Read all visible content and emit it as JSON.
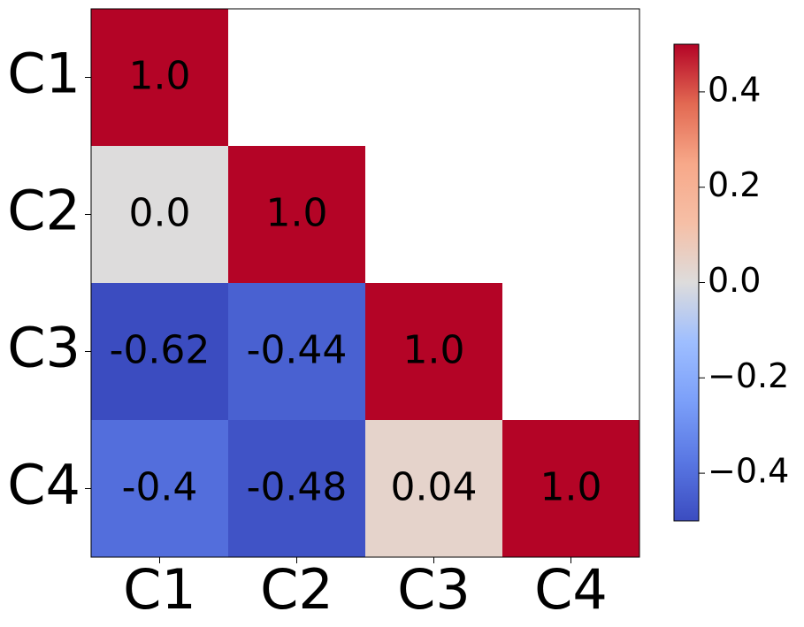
{
  "chart_data": {
    "type": "heatmap",
    "mask": "lower-triangle",
    "rows": [
      "C1",
      "C2",
      "C3",
      "C4"
    ],
    "cols": [
      "C1",
      "C2",
      "C3",
      "C4"
    ],
    "cells": [
      {
        "row": 0,
        "col": 0,
        "value": 1.0,
        "label": "1.0"
      },
      {
        "row": 1,
        "col": 0,
        "value": 0.0,
        "label": "0.0"
      },
      {
        "row": 1,
        "col": 1,
        "value": 1.0,
        "label": "1.0"
      },
      {
        "row": 2,
        "col": 0,
        "value": -0.62,
        "label": "-0.62"
      },
      {
        "row": 2,
        "col": 1,
        "value": -0.44,
        "label": "-0.44"
      },
      {
        "row": 2,
        "col": 2,
        "value": 1.0,
        "label": "1.0"
      },
      {
        "row": 3,
        "col": 0,
        "value": -0.4,
        "label": "-0.4"
      },
      {
        "row": 3,
        "col": 1,
        "value": -0.48,
        "label": "-0.48"
      },
      {
        "row": 3,
        "col": 2,
        "value": 0.04,
        "label": "0.04"
      },
      {
        "row": 3,
        "col": 3,
        "value": 1.0,
        "label": "1.0"
      }
    ],
    "colorbar": {
      "colormap": "coolwarm",
      "vmin": -0.5,
      "vmax": 0.5,
      "ticks": [
        0.4,
        0.2,
        0.0,
        -0.2,
        -0.4
      ],
      "tick_labels": [
        "0.4",
        "0.2",
        "0.0",
        "−0.2",
        "−0.4"
      ]
    },
    "grid": false,
    "title": "",
    "xlabel": "",
    "ylabel": ""
  }
}
